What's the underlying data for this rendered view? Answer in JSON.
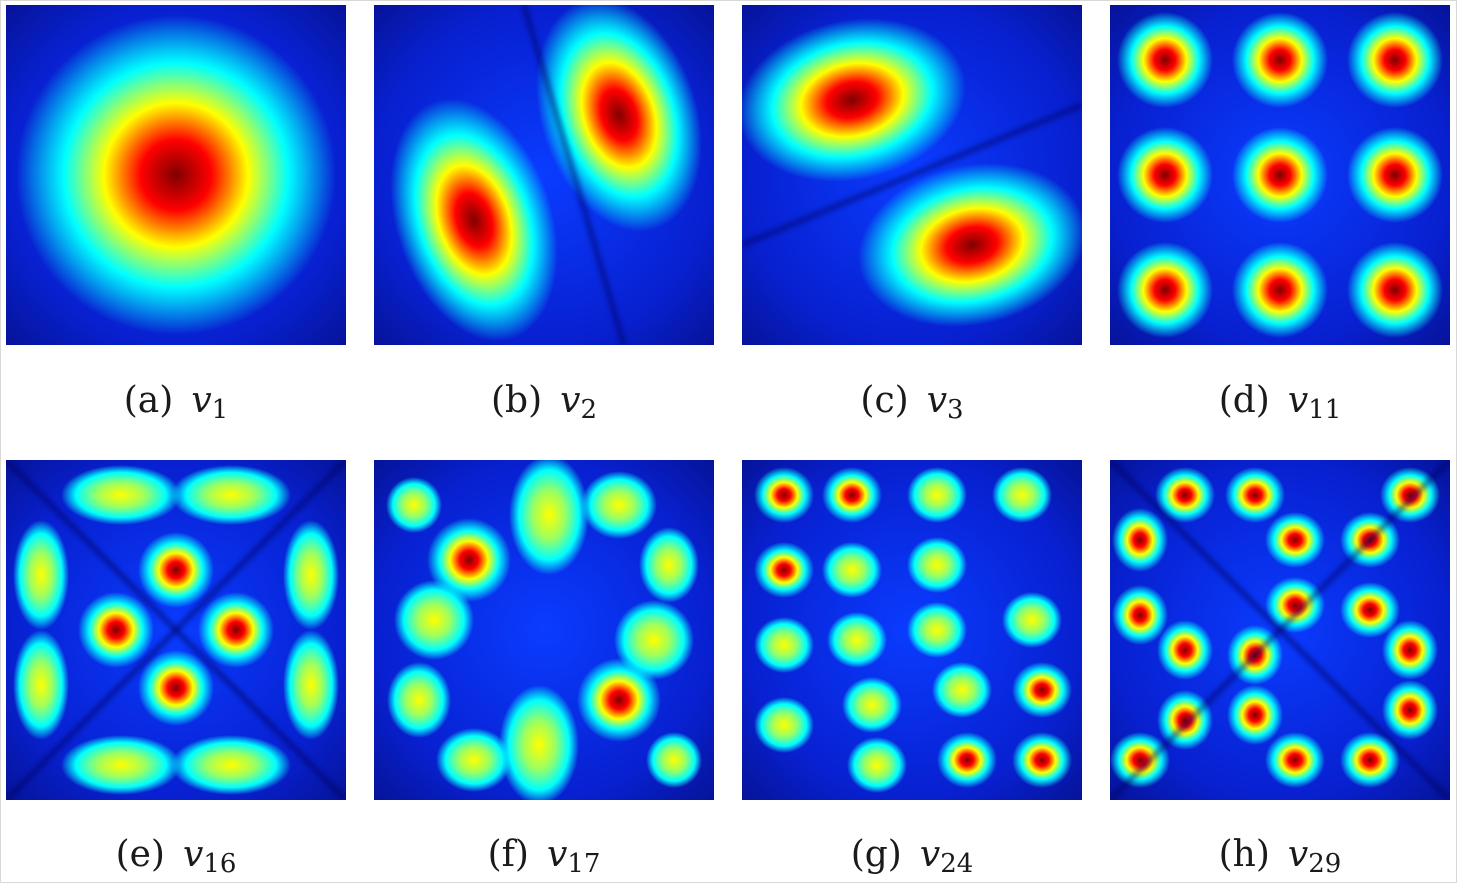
{
  "figure": {
    "panels": [
      {
        "label": "(a)",
        "var": "v",
        "sub": "1",
        "mode": "v1"
      },
      {
        "label": "(b)",
        "var": "v",
        "sub": "2",
        "mode": "v2"
      },
      {
        "label": "(c)",
        "var": "v",
        "sub": "3",
        "mode": "v3"
      },
      {
        "label": "(d)",
        "var": "v",
        "sub": "11",
        "mode": "v11"
      },
      {
        "label": "(e)",
        "var": "v",
        "sub": "16",
        "mode": "v16"
      },
      {
        "label": "(f)",
        "var": "v",
        "sub": "17",
        "mode": "v17"
      },
      {
        "label": "(g)",
        "var": "v",
        "sub": "24",
        "mode": "v24"
      },
      {
        "label": "(h)",
        "var": "v",
        "sub": "29",
        "mode": "v29"
      }
    ],
    "colormap": [
      "#00008f",
      "#0000ff",
      "#00ffff",
      "#ffff00",
      "#ff0000",
      "#800000"
    ]
  }
}
